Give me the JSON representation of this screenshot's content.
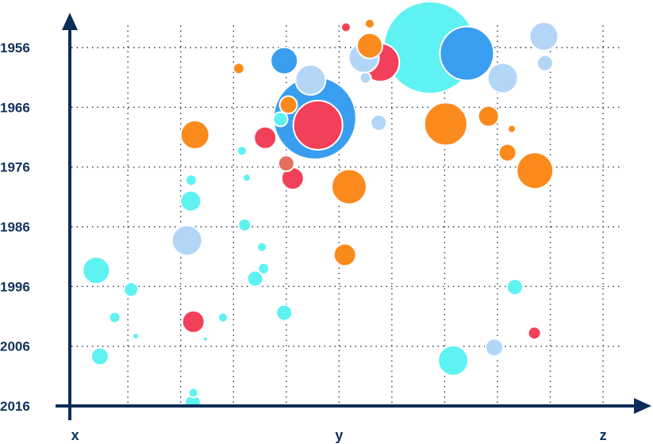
{
  "chart_data": {
    "type": "scatter",
    "title": "",
    "xlabel": "",
    "ylabel": "",
    "x_tick_labels": [
      {
        "label": "x",
        "at": 0
      },
      {
        "label": "y",
        "at": 50
      },
      {
        "label": "z",
        "at": 100
      }
    ],
    "xlim": [
      -1,
      106
    ],
    "ylim": [
      1952,
      2016
    ],
    "y_reversed": true,
    "y_ticks": [
      1956,
      1966,
      1976,
      1986,
      1996,
      2006,
      2016
    ],
    "x_grid_positions": [
      10,
      20,
      30,
      40,
      50,
      60,
      70,
      80,
      90,
      100
    ],
    "grid": true,
    "legend": "none",
    "colors": {
      "cyan": "#5ef2f2",
      "blue": "#3a9ef0",
      "lightblue": "#b3d6f7",
      "orange": "#fb8a1d",
      "red": "#f2405a",
      "salmon": "#e46f5f",
      "axis": "#0d2d57"
    },
    "points": [
      {
        "x": 67.2,
        "y": 1956,
        "r": 58,
        "color": "cyan"
      },
      {
        "x": 45.4,
        "y": 1967.8,
        "r": 52,
        "color": "blue"
      },
      {
        "x": 74.2,
        "y": 1957,
        "r": 34,
        "color": "blue"
      },
      {
        "x": 46.0,
        "y": 1969,
        "r": 31,
        "color": "red"
      },
      {
        "x": 57.8,
        "y": 1958.5,
        "r": 24,
        "color": "red"
      },
      {
        "x": 70.2,
        "y": 1968.8,
        "r": 27,
        "color": "orange"
      },
      {
        "x": 87.1,
        "y": 1976.6,
        "r": 23,
        "color": "orange"
      },
      {
        "x": 51.9,
        "y": 1979.3,
        "r": 22,
        "color": "orange"
      },
      {
        "x": 44.6,
        "y": 1961.4,
        "r": 19,
        "color": "lightblue"
      },
      {
        "x": 54.7,
        "y": 1957.7,
        "r": 19,
        "color": "lightblue"
      },
      {
        "x": 81.0,
        "y": 1961.1,
        "r": 19,
        "color": "lightblue"
      },
      {
        "x": 88.8,
        "y": 1954.1,
        "r": 18,
        "color": "lightblue"
      },
      {
        "x": 55.8,
        "y": 1955.7,
        "r": 16,
        "color": "orange"
      },
      {
        "x": 39.6,
        "y": 1958.2,
        "r": 17,
        "color": "blue"
      },
      {
        "x": 22.7,
        "y": 1970.6,
        "r": 18,
        "color": "orange"
      },
      {
        "x": 21.2,
        "y": 1988.3,
        "r": 19,
        "color": "lightblue"
      },
      {
        "x": 4.0,
        "y": 1993.3,
        "r": 17,
        "color": "cyan"
      },
      {
        "x": 71.6,
        "y": 2008.4,
        "r": 19,
        "color": "cyan"
      },
      {
        "x": 36.0,
        "y": 1971.1,
        "r": 14,
        "color": "red"
      },
      {
        "x": 41.2,
        "y": 1977.9,
        "r": 14,
        "color": "red"
      },
      {
        "x": 22.4,
        "y": 2001.9,
        "r": 14,
        "color": "red"
      },
      {
        "x": 51.1,
        "y": 1990.7,
        "r": 14,
        "color": "orange"
      },
      {
        "x": 78.3,
        "y": 1967.5,
        "r": 13,
        "color": "orange"
      },
      {
        "x": 21.9,
        "y": 1981.7,
        "r": 13,
        "color": "cyan"
      },
      {
        "x": 4.7,
        "y": 2007.7,
        "r": 11,
        "color": "cyan"
      },
      {
        "x": 57.5,
        "y": 1968.6,
        "r": 10,
        "color": "lightblue"
      },
      {
        "x": 79.4,
        "y": 2006.2,
        "r": 11,
        "color": "lightblue"
      },
      {
        "x": 81.9,
        "y": 1973.6,
        "r": 11,
        "color": "orange"
      },
      {
        "x": 40.4,
        "y": 1965.6,
        "r": 11,
        "color": "orange"
      },
      {
        "x": 40.0,
        "y": 1975.4,
        "r": 10,
        "color": "salmon"
      },
      {
        "x": 34.1,
        "y": 1994.7,
        "r": 10,
        "color": "cyan"
      },
      {
        "x": 10.6,
        "y": 1996.5,
        "r": 9,
        "color": "cyan"
      },
      {
        "x": 39.6,
        "y": 2000.4,
        "r": 10,
        "color": "cyan"
      },
      {
        "x": 83.3,
        "y": 1996.1,
        "r": 10,
        "color": "cyan"
      },
      {
        "x": 89.0,
        "y": 1958.6,
        "r": 10,
        "color": "lightblue"
      },
      {
        "x": 22.3,
        "y": 2015.5,
        "r": 10,
        "color": "cyan"
      },
      {
        "x": 31.0,
        "y": 1959.5,
        "r": 7,
        "color": "orange"
      },
      {
        "x": 35.7,
        "y": 1993.0,
        "r": 7,
        "color": "cyan"
      },
      {
        "x": 32.1,
        "y": 1985.7,
        "r": 8,
        "color": "cyan"
      },
      {
        "x": 31.6,
        "y": 1973.3,
        "r": 6,
        "color": "cyan"
      },
      {
        "x": 22.0,
        "y": 1978.2,
        "r": 7,
        "color": "cyan"
      },
      {
        "x": 7.5,
        "y": 2001.2,
        "r": 7,
        "color": "cyan"
      },
      {
        "x": 28.0,
        "y": 2001.2,
        "r": 6,
        "color": "cyan"
      },
      {
        "x": 35.4,
        "y": 1989.4,
        "r": 6,
        "color": "cyan"
      },
      {
        "x": 55.0,
        "y": 1961.1,
        "r": 7,
        "color": "lightblue"
      },
      {
        "x": 87.0,
        "y": 2003.8,
        "r": 8,
        "color": "red"
      },
      {
        "x": 22.4,
        "y": 2013.8,
        "r": 6,
        "color": "cyan"
      },
      {
        "x": 51.3,
        "y": 1952.6,
        "r": 6,
        "color": "red"
      },
      {
        "x": 55.8,
        "y": 1952.0,
        "r": 6,
        "color": "orange"
      },
      {
        "x": 82.7,
        "y": 1969.6,
        "r": 5,
        "color": "orange"
      },
      {
        "x": 32.5,
        "y": 1977.8,
        "r": 5,
        "color": "cyan"
      },
      {
        "x": 11.5,
        "y": 2004.3,
        "r": 4,
        "color": "cyan"
      },
      {
        "x": 24.7,
        "y": 2004.8,
        "r": 3,
        "color": "cyan"
      },
      {
        "x": 38.9,
        "y": 1968.0,
        "r": 9,
        "color": "cyan"
      }
    ]
  }
}
